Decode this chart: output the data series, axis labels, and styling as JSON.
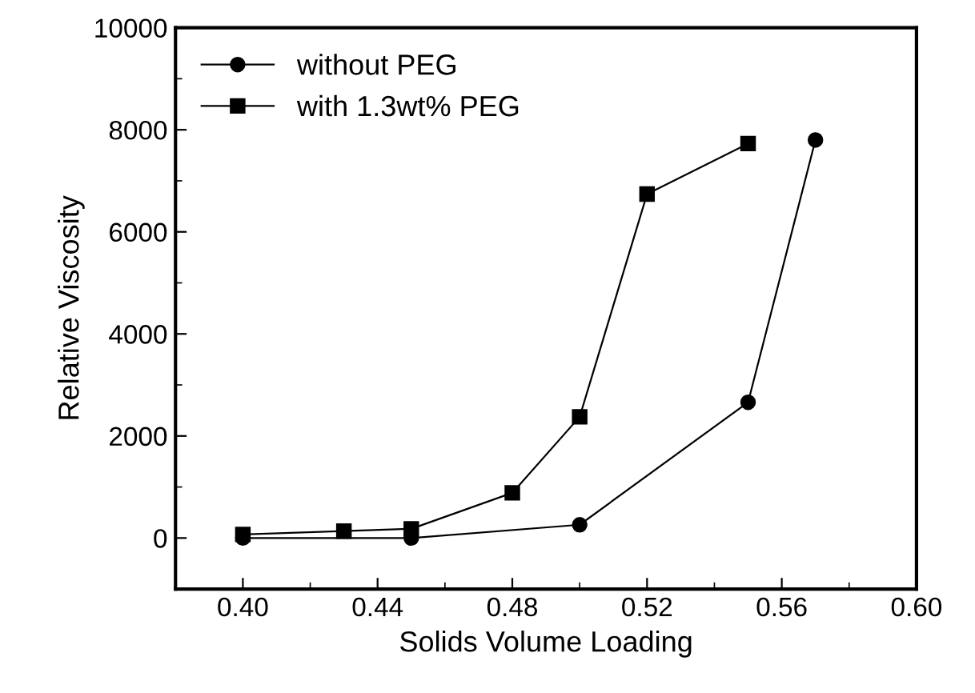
{
  "chart_data": {
    "type": "line",
    "xlabel": "Solids Volume Loading",
    "ylabel": "Relative Viscosity",
    "xlim": [
      0.38,
      0.6
    ],
    "xticks": [
      {
        "value": 0.4,
        "label": "0.40"
      },
      {
        "value": 0.44,
        "label": "0.44"
      },
      {
        "value": 0.48,
        "label": "0.48"
      },
      {
        "value": 0.52,
        "label": "0.52"
      },
      {
        "value": 0.56,
        "label": "0.56"
      },
      {
        "value": 0.6,
        "label": "0.60"
      }
    ],
    "ylim": [
      -1000,
      10000
    ],
    "yticks": [
      0,
      2000,
      4000,
      6000,
      8000,
      10000
    ],
    "legend": "top left",
    "grid": false,
    "series": [
      {
        "name": "without PEG",
        "color": "#000000",
        "marker": "circle",
        "x": [
          0.4,
          0.45,
          0.5,
          0.55,
          0.57
        ],
        "values": [
          0,
          0,
          260,
          2660,
          7800
        ]
      },
      {
        "name": "with 1.3wt% PEG",
        "color": "#000000",
        "marker": "square",
        "x": [
          0.4,
          0.43,
          0.45,
          0.48,
          0.5,
          0.52,
          0.55
        ],
        "values": [
          70,
          135,
          180,
          885,
          2375,
          6740,
          7730
        ]
      }
    ]
  }
}
